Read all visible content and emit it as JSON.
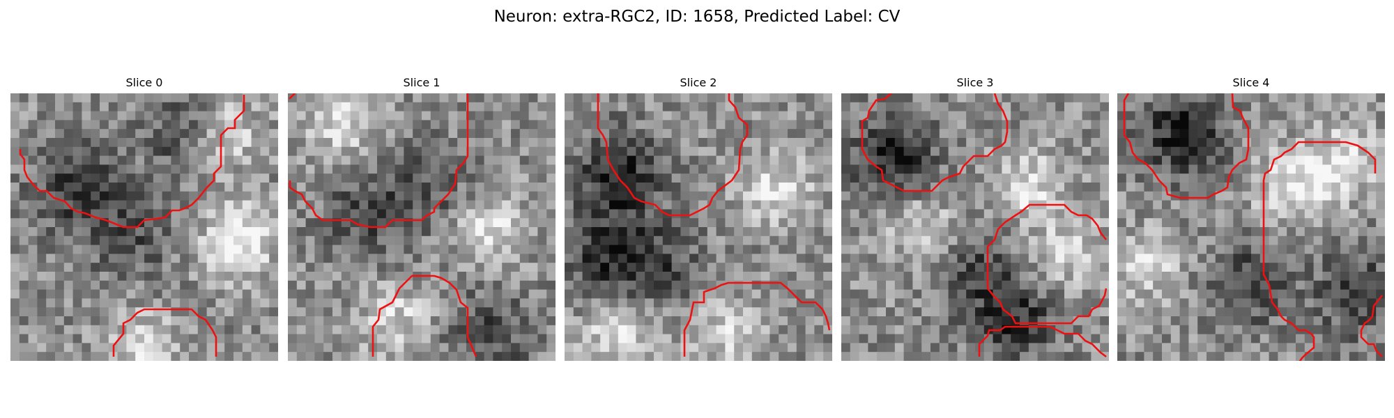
{
  "figure": {
    "title": "Neuron: extra-RGC2, ID: 1658, Predicted Label: CV"
  },
  "panels": [
    {
      "title": "Slice 0",
      "dark_regions": [
        [
          0.25,
          0.35,
          0.8
        ],
        [
          0.65,
          0.15,
          0.6
        ],
        [
          0.45,
          0.55,
          0.5
        ]
      ],
      "bright_regions": [
        [
          0.85,
          0.55,
          0.9
        ],
        [
          0.8,
          0.15,
          0.7
        ],
        [
          0.5,
          0.95,
          0.7
        ]
      ]
    },
    {
      "title": "Slice 1",
      "dark_regions": [
        [
          0.3,
          0.45,
          0.6
        ],
        [
          0.75,
          0.9,
          0.6
        ],
        [
          0.55,
          0.35,
          0.5
        ]
      ],
      "bright_regions": [
        [
          0.2,
          0.1,
          0.7
        ],
        [
          0.75,
          0.5,
          0.7
        ],
        [
          0.4,
          0.85,
          0.6
        ]
      ]
    },
    {
      "title": "Slice 2",
      "dark_regions": [
        [
          0.2,
          0.3,
          0.95
        ],
        [
          0.15,
          0.6,
          0.8
        ],
        [
          0.35,
          0.65,
          0.6
        ]
      ],
      "bright_regions": [
        [
          0.8,
          0.35,
          0.7
        ],
        [
          0.6,
          0.9,
          0.6
        ],
        [
          0.2,
          0.9,
          0.7
        ]
      ]
    },
    {
      "title": "Slice 3",
      "dark_regions": [
        [
          0.2,
          0.25,
          0.9
        ],
        [
          0.65,
          0.85,
          0.8
        ],
        [
          0.5,
          0.65,
          0.6
        ]
      ],
      "bright_regions": [
        [
          0.7,
          0.35,
          0.7
        ],
        [
          0.3,
          0.5,
          0.6
        ],
        [
          0.85,
          0.6,
          0.6
        ]
      ]
    },
    {
      "title": "Slice 4",
      "dark_regions": [
        [
          0.25,
          0.15,
          0.95
        ],
        [
          0.5,
          0.7,
          0.7
        ],
        [
          0.9,
          0.75,
          0.7
        ]
      ],
      "bright_regions": [
        [
          0.65,
          0.35,
          0.8
        ],
        [
          0.85,
          0.25,
          0.7
        ],
        [
          0.1,
          0.65,
          0.6
        ]
      ]
    }
  ],
  "contour_color": "#ee1111"
}
